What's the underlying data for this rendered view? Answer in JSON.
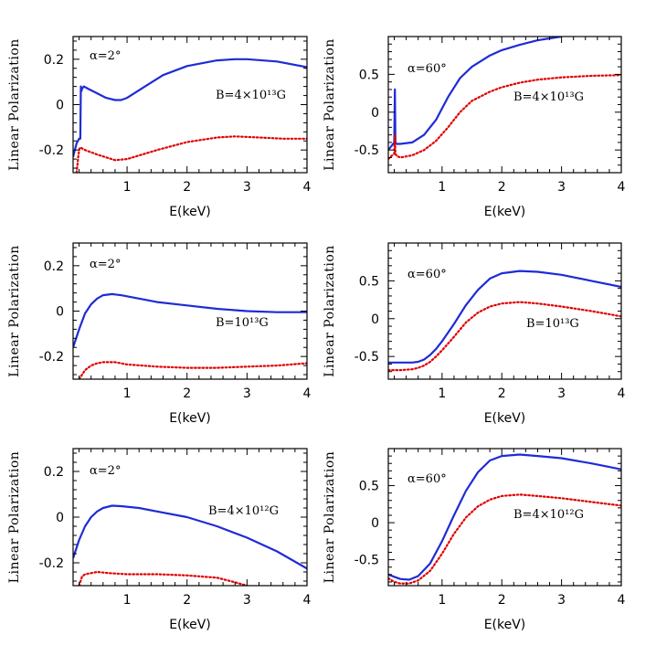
{
  "colors": {
    "model_a": "#1f2bd6",
    "model_b": "#e00000",
    "frame": "#000000"
  },
  "chart_data": [
    {
      "type": "line",
      "xlabel": "E(keV)",
      "ylabel": "Linear Polarization",
      "xlim": [
        0.1,
        4
      ],
      "ylim": [
        -0.3,
        0.3
      ],
      "xticks": [
        "1",
        "2",
        "3",
        "4"
      ],
      "yticks": [
        "0.2",
        "0",
        "-0.2"
      ],
      "ytick_values": [
        0.2,
        0,
        -0.2
      ],
      "angle_label": "α=2°",
      "field_label": "B=4×10¹³G",
      "series": [
        {
          "style": "solid",
          "color": "#1f2bd6",
          "x": [
            0.1,
            0.16,
            0.2,
            0.22,
            0.23,
            0.24,
            0.25,
            0.28,
            0.35,
            0.5,
            0.65,
            0.8,
            0.9,
            1.0,
            1.3,
            1.6,
            2.0,
            2.5,
            2.8,
            3.0,
            3.5,
            4.0
          ],
          "y": [
            -0.23,
            -0.17,
            -0.15,
            -0.15,
            0.08,
            0.06,
            0.07,
            0.08,
            0.07,
            0.05,
            0.03,
            0.02,
            0.02,
            0.03,
            0.08,
            0.13,
            0.17,
            0.195,
            0.2,
            0.2,
            0.19,
            0.165
          ]
        },
        {
          "style": "dotted",
          "color": "#e00000",
          "x": [
            0.16,
            0.19,
            0.21,
            0.23,
            0.3,
            0.5,
            0.8,
            1.0,
            1.5,
            2.0,
            2.5,
            2.8,
            3.2,
            3.6,
            4.0
          ],
          "y": [
            -0.3,
            -0.22,
            -0.19,
            -0.19,
            -0.2,
            -0.22,
            -0.245,
            -0.24,
            -0.2,
            -0.165,
            -0.145,
            -0.14,
            -0.145,
            -0.15,
            -0.15
          ]
        }
      ]
    },
    {
      "type": "line",
      "xlabel": "E(keV)",
      "ylabel": "Linear Polarization",
      "xlim": [
        0.1,
        4
      ],
      "ylim": [
        -0.8,
        1.0
      ],
      "xticks": [
        "1",
        "2",
        "3",
        "4"
      ],
      "yticks": [
        "0.5",
        "0",
        "-0.5"
      ],
      "ytick_values": [
        0.5,
        0,
        -0.5
      ],
      "angle_label": "α=60°",
      "field_label": "B=4×10¹³G",
      "series": [
        {
          "style": "solid",
          "color": "#1f2bd6",
          "x": [
            0.1,
            0.15,
            0.2,
            0.21,
            0.22,
            0.23,
            0.25,
            0.3,
            0.5,
            0.7,
            0.9,
            1.1,
            1.3,
            1.5,
            1.8,
            2.0,
            2.3,
            2.6,
            3.0
          ],
          "y": [
            -0.5,
            -0.45,
            -0.4,
            0.3,
            -0.4,
            -0.42,
            -0.42,
            -0.42,
            -0.4,
            -0.3,
            -0.1,
            0.2,
            0.45,
            0.6,
            0.75,
            0.82,
            0.89,
            0.95,
            1.0
          ]
        },
        {
          "style": "dotted",
          "color": "#e00000",
          "x": [
            0.1,
            0.15,
            0.2,
            0.21,
            0.22,
            0.24,
            0.3,
            0.5,
            0.7,
            0.9,
            1.1,
            1.3,
            1.5,
            1.8,
            2.0,
            2.3,
            2.6,
            3.0,
            3.5,
            4.0
          ],
          "y": [
            -0.62,
            -0.58,
            -0.55,
            -0.3,
            -0.55,
            -0.58,
            -0.6,
            -0.57,
            -0.5,
            -0.38,
            -0.2,
            0.0,
            0.15,
            0.27,
            0.33,
            0.39,
            0.43,
            0.46,
            0.48,
            0.49
          ]
        }
      ]
    },
    {
      "type": "line",
      "xlabel": "E(keV)",
      "ylabel": "Linear Polarization",
      "xlim": [
        0.1,
        4
      ],
      "ylim": [
        -0.3,
        0.3
      ],
      "xticks": [
        "1",
        "2",
        "3",
        "4"
      ],
      "yticks": [
        "0.2",
        "0",
        "-0.2"
      ],
      "ytick_values": [
        0.2,
        0,
        -0.2
      ],
      "angle_label": "α=2°",
      "field_label": "B=10¹³G",
      "series": [
        {
          "style": "solid",
          "color": "#1f2bd6",
          "x": [
            0.1,
            0.2,
            0.3,
            0.4,
            0.5,
            0.6,
            0.75,
            0.9,
            1.2,
            1.5,
            2.0,
            2.5,
            3.0,
            3.5,
            4.0
          ],
          "y": [
            -0.16,
            -0.08,
            -0.01,
            0.03,
            0.055,
            0.07,
            0.075,
            0.07,
            0.055,
            0.04,
            0.025,
            0.01,
            0.0,
            -0.005,
            -0.005
          ]
        },
        {
          "style": "dotted",
          "color": "#e00000",
          "x": [
            0.2,
            0.3,
            0.4,
            0.5,
            0.6,
            0.8,
            1.0,
            1.5,
            2.0,
            2.5,
            3.0,
            3.5,
            4.0
          ],
          "y": [
            -0.3,
            -0.26,
            -0.24,
            -0.23,
            -0.225,
            -0.225,
            -0.235,
            -0.245,
            -0.25,
            -0.25,
            -0.245,
            -0.24,
            -0.23
          ]
        }
      ]
    },
    {
      "type": "line",
      "xlabel": "E(keV)",
      "ylabel": "Linear Polarization",
      "xlim": [
        0.1,
        4
      ],
      "ylim": [
        -0.8,
        1.0
      ],
      "xticks": [
        "1",
        "2",
        "3",
        "4"
      ],
      "yticks": [
        "0.5",
        "0",
        "-0.5"
      ],
      "ytick_values": [
        0.5,
        0,
        -0.5
      ],
      "angle_label": "α=60°",
      "field_label": "B=10¹³G",
      "series": [
        {
          "style": "solid",
          "color": "#1f2bd6",
          "x": [
            0.1,
            0.3,
            0.5,
            0.6,
            0.7,
            0.8,
            0.9,
            1.0,
            1.2,
            1.4,
            1.6,
            1.8,
            2.0,
            2.3,
            2.6,
            3.0,
            3.5,
            4.0
          ],
          "y": [
            -0.58,
            -0.58,
            -0.58,
            -0.57,
            -0.54,
            -0.48,
            -0.4,
            -0.3,
            -0.07,
            0.18,
            0.38,
            0.53,
            0.6,
            0.63,
            0.62,
            0.58,
            0.5,
            0.42
          ]
        },
        {
          "style": "dotted",
          "color": "#e00000",
          "x": [
            0.1,
            0.3,
            0.5,
            0.6,
            0.7,
            0.8,
            0.9,
            1.0,
            1.2,
            1.4,
            1.6,
            1.8,
            2.0,
            2.3,
            2.6,
            3.0,
            3.5,
            4.0
          ],
          "y": [
            -0.68,
            -0.68,
            -0.67,
            -0.65,
            -0.62,
            -0.57,
            -0.5,
            -0.42,
            -0.24,
            -0.05,
            0.08,
            0.16,
            0.2,
            0.22,
            0.2,
            0.16,
            0.1,
            0.03
          ]
        }
      ]
    },
    {
      "type": "line",
      "xlabel": "E(keV)",
      "ylabel": "Linear Polarization",
      "xlim": [
        0.1,
        4
      ],
      "ylim": [
        -0.3,
        0.3
      ],
      "xticks": [
        "1",
        "2",
        "3",
        "4"
      ],
      "yticks": [
        "0.2",
        "0",
        "-0.2"
      ],
      "ytick_values": [
        0.2,
        0,
        -0.2
      ],
      "angle_label": "α=2°",
      "field_label": "B=4×10¹²G",
      "series": [
        {
          "style": "solid",
          "color": "#1f2bd6",
          "x": [
            0.1,
            0.2,
            0.3,
            0.4,
            0.5,
            0.6,
            0.75,
            0.9,
            1.2,
            1.5,
            2.0,
            2.5,
            3.0,
            3.5,
            4.0
          ],
          "y": [
            -0.18,
            -0.1,
            -0.04,
            0.0,
            0.025,
            0.04,
            0.05,
            0.048,
            0.04,
            0.025,
            0.0,
            -0.04,
            -0.09,
            -0.15,
            -0.225
          ]
        },
        {
          "style": "dotted",
          "color": "#e00000",
          "x": [
            0.2,
            0.25,
            0.3,
            0.4,
            0.5,
            0.7,
            1.0,
            1.5,
            2.0,
            2.5,
            2.8,
            3.0
          ],
          "y": [
            -0.3,
            -0.26,
            -0.25,
            -0.245,
            -0.24,
            -0.245,
            -0.25,
            -0.25,
            -0.255,
            -0.265,
            -0.285,
            -0.3
          ]
        }
      ]
    },
    {
      "type": "line",
      "xlabel": "E(keV)",
      "ylabel": "Linear Polarization",
      "xlim": [
        0.1,
        4
      ],
      "ylim": [
        -0.85,
        1.0
      ],
      "xticks": [
        "1",
        "2",
        "3",
        "4"
      ],
      "yticks": [
        "0.5",
        "0",
        "-0.5"
      ],
      "ytick_values": [
        0.5,
        0,
        -0.5
      ],
      "angle_label": "α=60°",
      "field_label": "B=4×10¹²G",
      "series": [
        {
          "style": "solid",
          "color": "#1f2bd6",
          "x": [
            0.1,
            0.2,
            0.3,
            0.45,
            0.6,
            0.8,
            1.0,
            1.2,
            1.4,
            1.6,
            1.8,
            2.0,
            2.3,
            2.6,
            3.0,
            3.5,
            4.0
          ],
          "y": [
            -0.7,
            -0.73,
            -0.76,
            -0.77,
            -0.72,
            -0.55,
            -0.25,
            0.1,
            0.43,
            0.68,
            0.84,
            0.9,
            0.92,
            0.9,
            0.87,
            0.8,
            0.72
          ]
        },
        {
          "style": "dotted",
          "color": "#e00000",
          "x": [
            0.1,
            0.2,
            0.3,
            0.45,
            0.6,
            0.8,
            1.0,
            1.2,
            1.4,
            1.6,
            1.8,
            2.0,
            2.3,
            2.6,
            3.0,
            3.5,
            4.0
          ],
          "y": [
            -0.75,
            -0.8,
            -0.82,
            -0.82,
            -0.78,
            -0.65,
            -0.42,
            -0.15,
            0.07,
            0.22,
            0.31,
            0.36,
            0.38,
            0.36,
            0.33,
            0.28,
            0.23
          ]
        }
      ]
    }
  ]
}
